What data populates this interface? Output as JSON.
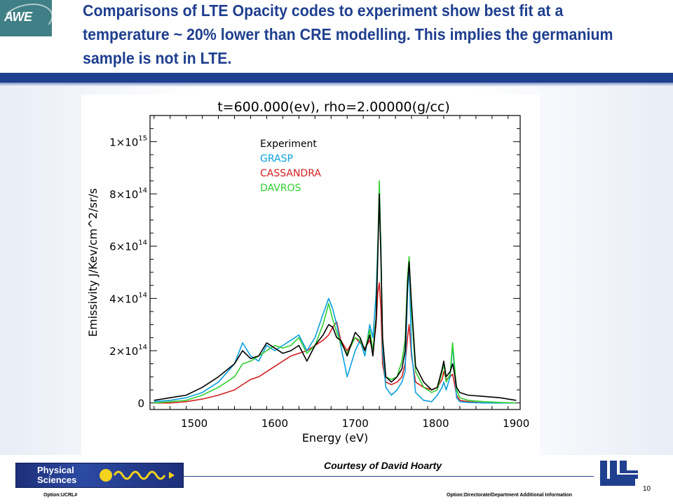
{
  "slide": {
    "title": "Comparisons of LTE Opacity codes to experiment show best fit at a temperature ~ 20% lower than CRE modelling.  This implies the germanium sample is not in LTE.",
    "logo_text": "AWE",
    "courtesy": "Courtesy of David Hoarty",
    "footer_left": "Option:UCRL#",
    "footer_right": "Option:Directorate/Department  Additional Information",
    "page_number": "10",
    "physical_sciences_line1": "Physical",
    "physical_sciences_line2": "Sciences",
    "colors": {
      "title": "#1f3f8f",
      "bar": "#1f3f8f",
      "logo_bg": "#3f7f85"
    }
  },
  "chart_data": {
    "type": "line",
    "title": "t=600.000(ev),  rho=2.00000(g/cc)",
    "xlabel": "Energy (eV)",
    "ylabel": "Emissivity  J/Kev/cm^2/sr/s",
    "xlim": [
      1445,
      1905
    ],
    "ylim": [
      -25000000000000.0,
      1100000000000000.0
    ],
    "x_ticks": [
      1500,
      1600,
      1700,
      1800,
      1900
    ],
    "x_tick_labels": [
      "1500",
      "1600",
      "1700",
      "1800",
      "1900"
    ],
    "y_ticks": [
      0,
      200000000000000.0,
      400000000000000.0,
      600000000000000.0,
      800000000000000.0,
      1000000000000000.0
    ],
    "y_tick_labels": [
      {
        "mantissa": "0",
        "exponent": ""
      },
      {
        "mantissa": "2×10",
        "exponent": "14"
      },
      {
        "mantissa": "4×10",
        "exponent": "14"
      },
      {
        "mantissa": "6×10",
        "exponent": "14"
      },
      {
        "mantissa": "8×10",
        "exponent": "14"
      },
      {
        "mantissa": "1×10",
        "exponent": "15"
      }
    ],
    "legend_position": "top-left",
    "x": [
      1450,
      1470,
      1490,
      1510,
      1530,
      1550,
      1560,
      1570,
      1580,
      1590,
      1600,
      1610,
      1620,
      1630,
      1640,
      1650,
      1660,
      1667,
      1672,
      1677,
      1682,
      1690,
      1700,
      1706,
      1712,
      1718,
      1722,
      1726,
      1728,
      1730,
      1732,
      1734,
      1738,
      1745,
      1752,
      1758,
      1762,
      1765,
      1767,
      1770,
      1775,
      1785,
      1795,
      1802,
      1808,
      1810,
      1813,
      1818,
      1821,
      1823,
      1826,
      1830,
      1840,
      1860,
      1880,
      1900
    ],
    "series": [
      {
        "name": "Experiment",
        "color": "#000000",
        "values": [
          10000000000000.0,
          20000000000000.0,
          30000000000000.0,
          60000000000000.0,
          100000000000000.0,
          150000000000000.0,
          200000000000000.0,
          170000000000000.0,
          180000000000000.0,
          230000000000000.0,
          210000000000000.0,
          190000000000000.0,
          200000000000000.0,
          220000000000000.0,
          160000000000000.0,
          220000000000000.0,
          260000000000000.0,
          300000000000000.0,
          290000000000000.0,
          250000000000000.0,
          240000000000000.0,
          180000000000000.0,
          270000000000000.0,
          250000000000000.0,
          200000000000000.0,
          260000000000000.0,
          180000000000000.0,
          320000000000000.0,
          550000000000000.0,
          800000000000000.0,
          550000000000000.0,
          250000000000000.0,
          100000000000000.0,
          80000000000000.0,
          100000000000000.0,
          130000000000000.0,
          200000000000000.0,
          450000000000000.0,
          540000000000000.0,
          380000000000000.0,
          140000000000000.0,
          80000000000000.0,
          50000000000000.0,
          60000000000000.0,
          130000000000000.0,
          160000000000000.0,
          100000000000000.0,
          120000000000000.0,
          150000000000000.0,
          120000000000000.0,
          60000000000000.0,
          40000000000000.0,
          30000000000000.0,
          25000000000000.0,
          20000000000000.0,
          10000000000000.0
        ]
      },
      {
        "name": "GRASP",
        "color": "#0a9fdf",
        "values": [
          5000000000000.0,
          10000000000000.0,
          20000000000000.0,
          40000000000000.0,
          80000000000000.0,
          150000000000000.0,
          230000000000000.0,
          180000000000000.0,
          160000000000000.0,
          220000000000000.0,
          200000000000000.0,
          220000000000000.0,
          240000000000000.0,
          260000000000000.0,
          200000000000000.0,
          250000000000000.0,
          340000000000000.0,
          400000000000000.0,
          360000000000000.0,
          300000000000000.0,
          220000000000000.0,
          100000000000000.0,
          200000000000000.0,
          240000000000000.0,
          180000000000000.0,
          300000000000000.0,
          250000000000000.0,
          420000000000000.0,
          600000000000000.0,
          770000000000000.0,
          600000000000000.0,
          200000000000000.0,
          60000000000000.0,
          30000000000000.0,
          50000000000000.0,
          80000000000000.0,
          120000000000000.0,
          420000000000000.0,
          530000000000000.0,
          200000000000000.0,
          40000000000000.0,
          10000000000000.0,
          5000000000000.0,
          30000000000000.0,
          60000000000000.0,
          80000000000000.0,
          50000000000000.0,
          100000000000000.0,
          220000000000000.0,
          140000000000000.0,
          20000000000000.0,
          5000000000000.0,
          2000000000000.0,
          0.0,
          0.0,
          0.0
        ]
      },
      {
        "name": "CASSANDRA",
        "color": "#d41f1f",
        "values": [
          0.0,
          0.0,
          5000000000000.0,
          15000000000000.0,
          30000000000000.0,
          50000000000000.0,
          70000000000000.0,
          90000000000000.0,
          100000000000000.0,
          120000000000000.0,
          140000000000000.0,
          160000000000000.0,
          180000000000000.0,
          190000000000000.0,
          200000000000000.0,
          220000000000000.0,
          240000000000000.0,
          260000000000000.0,
          290000000000000.0,
          310000000000000.0,
          240000000000000.0,
          200000000000000.0,
          250000000000000.0,
          230000000000000.0,
          210000000000000.0,
          240000000000000.0,
          200000000000000.0,
          300000000000000.0,
          420000000000000.0,
          460000000000000.0,
          360000000000000.0,
          150000000000000.0,
          80000000000000.0,
          70000000000000.0,
          80000000000000.0,
          100000000000000.0,
          150000000000000.0,
          250000000000000.0,
          300000000000000.0,
          180000000000000.0,
          80000000000000.0,
          60000000000000.0,
          50000000000000.0,
          60000000000000.0,
          90000000000000.0,
          120000000000000.0,
          90000000000000.0,
          100000000000000.0,
          110000000000000.0,
          80000000000000.0,
          30000000000000.0,
          10000000000000.0,
          5000000000000.0,
          0.0,
          0.0,
          0.0
        ]
      },
      {
        "name": "DAVROS",
        "color": "#2fcf2f",
        "values": [
          0.0,
          5000000000000.0,
          10000000000000.0,
          30000000000000.0,
          60000000000000.0,
          100000000000000.0,
          150000000000000.0,
          160000000000000.0,
          180000000000000.0,
          200000000000000.0,
          220000000000000.0,
          210000000000000.0,
          220000000000000.0,
          250000000000000.0,
          190000000000000.0,
          220000000000000.0,
          300000000000000.0,
          380000000000000.0,
          320000000000000.0,
          270000000000000.0,
          230000000000000.0,
          190000000000000.0,
          250000000000000.0,
          240000000000000.0,
          200000000000000.0,
          280000000000000.0,
          200000000000000.0,
          330000000000000.0,
          580000000000000.0,
          850000000000000.0,
          580000000000000.0,
          240000000000000.0,
          100000000000000.0,
          90000000000000.0,
          100000000000000.0,
          160000000000000.0,
          240000000000000.0,
          480000000000000.0,
          560000000000000.0,
          350000000000000.0,
          120000000000000.0,
          60000000000000.0,
          40000000000000.0,
          50000000000000.0,
          120000000000000.0,
          150000000000000.0,
          80000000000000.0,
          110000000000000.0,
          230000000000000.0,
          160000000000000.0,
          50000000000000.0,
          20000000000000.0,
          10000000000000.0,
          5000000000000.0,
          2000000000000.0,
          0.0
        ]
      }
    ]
  }
}
